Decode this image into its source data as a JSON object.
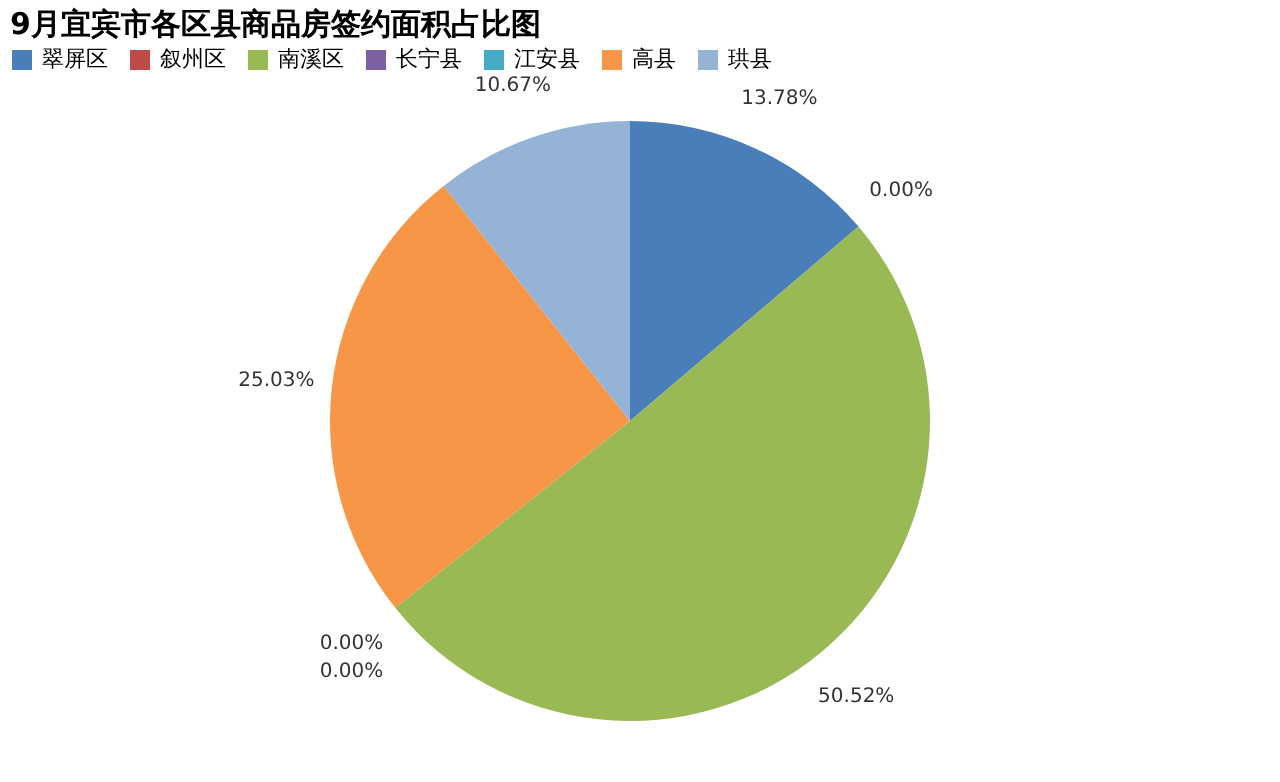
{
  "chart_data": {
    "type": "pie",
    "title": "9月宜宾市各区县商品房签约面积占比图",
    "categories": [
      "翠屏区",
      "叙州区",
      "南溪区",
      "长宁县",
      "江安县",
      "高县",
      "珙县"
    ],
    "values": [
      13.78,
      0.0,
      50.52,
      0.0,
      0.0,
      25.03,
      10.67
    ],
    "value_labels": [
      "13.78%",
      "0.00%",
      "50.52%",
      "0.00%",
      "0.00%",
      "25.03%",
      "10.67%"
    ],
    "colors": [
      "#4a7ebb",
      "#be4b48",
      "#98b954",
      "#7d60a0",
      "#46aac5",
      "#f79646",
      "#95b3d7"
    ],
    "legend": "top"
  }
}
